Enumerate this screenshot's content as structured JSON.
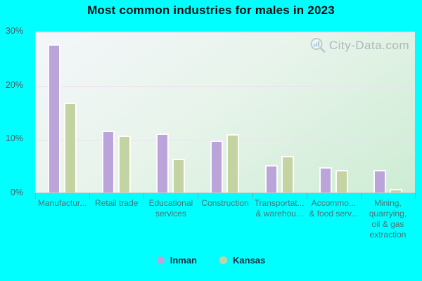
{
  "title": "Most common industries for males in 2023",
  "watermark": "City-Data.com",
  "chart_data": {
    "type": "bar",
    "title": "Most common industries for males in 2023",
    "categories": [
      "Manufactur...",
      "Retail trade",
      "Educational\nservices",
      "Construction",
      "Transportat...\n& warehou...",
      "Accommo...\n& food serv...",
      "Mining,\nquarrying,\noil & gas\nextraction"
    ],
    "series": [
      {
        "name": "Inman",
        "color": "#bba4d9",
        "values": [
          27.8,
          11.6,
          11.0,
          9.7,
          5.1,
          4.8,
          4.2
        ]
      },
      {
        "name": "Kansas",
        "color": "#c4d3a2",
        "values": [
          16.8,
          10.7,
          6.3,
          10.9,
          6.9,
          4.2,
          0.7
        ]
      }
    ],
    "xlabel": "",
    "ylabel": "",
    "ylim": [
      0,
      30
    ],
    "yticks": [
      {
        "value": 0,
        "label": "0%"
      },
      {
        "value": 10,
        "label": "10%"
      },
      {
        "value": 20,
        "label": "20%"
      },
      {
        "value": 30,
        "label": "30%"
      }
    ],
    "grid": true,
    "legend_position": "bottom-center"
  },
  "colors": {
    "background": "#00ffff",
    "inman": "#bba4d9",
    "kansas": "#c4d3a2",
    "plot_gradient_top_right": "#f3f6fa",
    "plot_gradient_bottom_left": "#cdecd4",
    "gridline": "#e9e0ec",
    "ytick_label": "#54565e",
    "xtick_label": "#4d7174",
    "legend_text": "#26263a",
    "watermark_text": "#9ba1a9"
  }
}
